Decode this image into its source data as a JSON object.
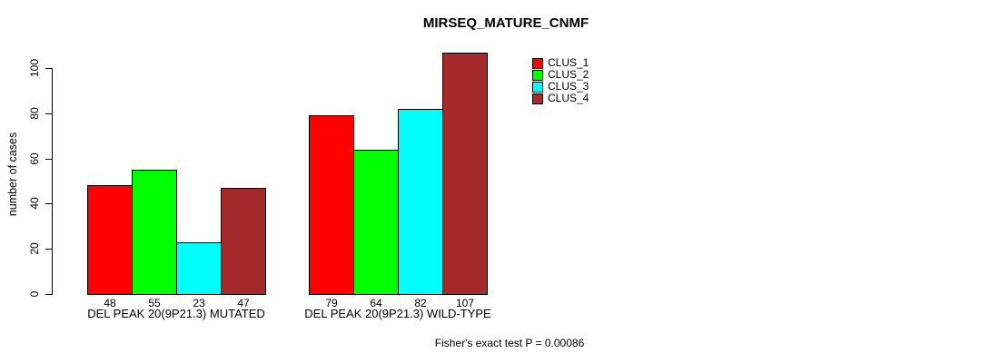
{
  "chart_data": {
    "type": "bar",
    "title": "MIRSEQ_MATURE_CNMF",
    "ylabel": "number of cases",
    "xlabel": "",
    "ylim": [
      0,
      110
    ],
    "yticks": [
      0,
      20,
      40,
      60,
      80,
      100
    ],
    "grid": false,
    "categories": [
      "DEL PEAK 20(9P21.3) MUTATED",
      "DEL PEAK 20(9P21.3) WILD-TYPE"
    ],
    "series": [
      {
        "name": "CLUS_1",
        "color": "#FF0000",
        "values": [
          48,
          79
        ]
      },
      {
        "name": "CLUS_2",
        "color": "#00FF00",
        "values": [
          55,
          64
        ]
      },
      {
        "name": "CLUS_3",
        "color": "#00FFFF",
        "values": [
          23,
          82
        ]
      },
      {
        "name": "CLUS_4",
        "color": "#A52A2A",
        "values": [
          47,
          107
        ]
      }
    ],
    "bar_value_labels_shown": true,
    "legend_position": "top-right",
    "annotation": "Fisher's exact test P = 0.00086"
  }
}
